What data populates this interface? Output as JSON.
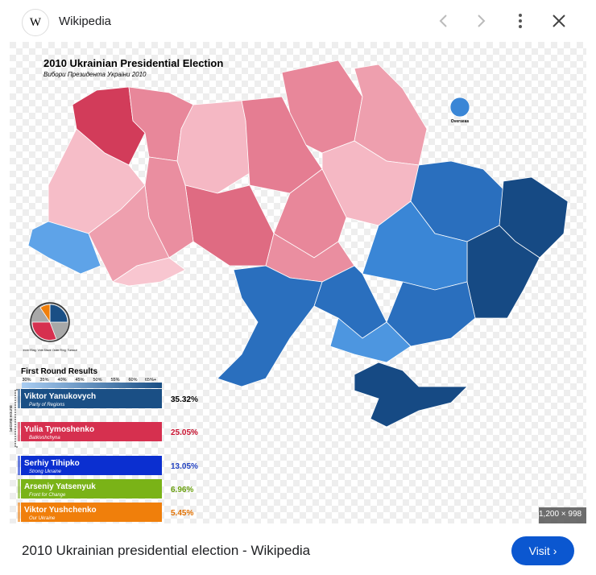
{
  "header": {
    "source": "Wikipedia",
    "icon_letter": "W"
  },
  "image": {
    "title": "2010 Ukrainian Presidential Election",
    "subtitle": "Вибори Президента України 2010",
    "overseas": "Overseas",
    "pie_note": "Inner Ring: Vote Share Outer Ring: Turnout",
    "results_title": "First Round Results",
    "scale": [
      "30%",
      "35%",
      "40%",
      "45%",
      "50%",
      "55%",
      "60%",
      "65%+"
    ],
    "second_round": "Second Round",
    "candidates": [
      {
        "name": "Viktor Yanukovych",
        "party": "Party of Regions",
        "share": "35.32%",
        "color": "#1a4f85",
        "text": "#000"
      },
      {
        "name": "Yulia Tymoshenko",
        "party": "Batkivshchyna",
        "share": "25.05%",
        "color": "#d6304f",
        "text": "#c8102e"
      },
      {
        "name": "Serhiy Tihipko",
        "party": "Strong Ukraine",
        "share": "13.05%",
        "color": "#0b2fd0",
        "text": "#1f3fbf"
      },
      {
        "name": "Arseniy Yatsenyuk",
        "party": "Front for Change",
        "share": "6.96%",
        "color": "#7ab317",
        "text": "#6aa00f"
      },
      {
        "name": "Viktor Yushchenko",
        "party": "Our Ukraine",
        "share": "5.45%",
        "color": "#f07f0b",
        "text": "#e07000"
      }
    ],
    "size": "1,200 × 998"
  },
  "caption": "2010 Ukrainian presidential election - Wikipedia",
  "button": "Visit"
}
